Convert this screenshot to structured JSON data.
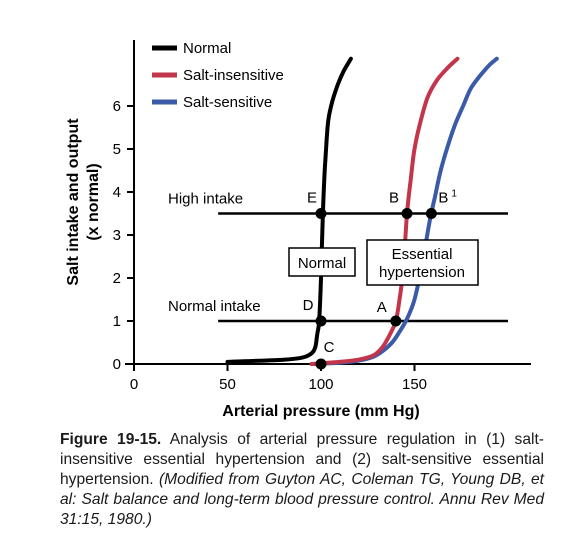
{
  "chart_data": {
    "type": "line",
    "xlabel": "Arterial pressure (mm Hg)",
    "ylabel_line1": "Salt intake and output",
    "ylabel_line2": "(x normal)",
    "xlim": [
      0,
      200
    ],
    "ylim": [
      0,
      7.3
    ],
    "x_ticks": [
      0,
      50,
      100,
      150
    ],
    "y_ticks": [
      0,
      1,
      2,
      3,
      4,
      5,
      6
    ],
    "grid": false,
    "legend_position": "top-left",
    "series": [
      {
        "name": "Normal",
        "color": "#000000",
        "x": [
          50,
          80,
          90,
          95,
          97,
          98,
          99,
          100,
          101,
          102,
          103,
          104,
          106,
          109,
          112,
          116
        ],
        "y": [
          0.05,
          0.1,
          0.15,
          0.25,
          0.4,
          0.7,
          1.0,
          2.0,
          3.5,
          4.5,
          5.2,
          5.7,
          6.1,
          6.5,
          6.8,
          7.1
        ]
      },
      {
        "name": "Salt-insensitive",
        "color": "#c3354a",
        "x": [
          95,
          110,
          120,
          128,
          133,
          137,
          140,
          142,
          144,
          146,
          148,
          150,
          153,
          157,
          162,
          168,
          173
        ],
        "y": [
          0.0,
          0.05,
          0.1,
          0.2,
          0.4,
          0.7,
          1.0,
          1.5,
          2.2,
          3.5,
          4.3,
          5.0,
          5.6,
          6.2,
          6.6,
          6.9,
          7.1
        ]
      },
      {
        "name": "Salt-sensitive",
        "color": "#3b5aa7",
        "x": [
          95,
          110,
          120,
          128,
          133,
          138,
          142,
          146,
          150,
          154,
          158,
          161,
          164,
          168,
          172,
          176,
          180,
          185,
          190,
          194
        ],
        "y": [
          0.0,
          0.03,
          0.08,
          0.17,
          0.3,
          0.5,
          0.75,
          1.05,
          1.5,
          2.3,
          3.3,
          3.9,
          4.5,
          5.1,
          5.6,
          6.0,
          6.4,
          6.7,
          6.95,
          7.1
        ]
      }
    ],
    "reference_lines": [
      {
        "label": "High intake",
        "y": 3.5,
        "x_start": 45,
        "x_end": 200
      },
      {
        "label": "Normal intake",
        "y": 1.0,
        "x_start": 45,
        "x_end": 200
      }
    ],
    "points": [
      {
        "label": "E",
        "x": 100,
        "y": 3.5
      },
      {
        "label": "B",
        "x": 146,
        "y": 3.5
      },
      {
        "label": "B",
        "superscript": "1",
        "x": 159,
        "y": 3.5
      },
      {
        "label": "D",
        "x": 100,
        "y": 1.0
      },
      {
        "label": "A",
        "x": 140,
        "y": 1.0
      },
      {
        "label": "C",
        "x": 100,
        "y": 0.0
      }
    ],
    "boxed_labels": [
      {
        "lines": [
          "Normal"
        ]
      },
      {
        "lines": [
          "Essential",
          "hypertension"
        ]
      }
    ]
  },
  "caption": {
    "figure_number": "Figure 19-15.",
    "text": " Analysis of arterial pressure regulation in (1) salt-insensitive essential hypertension and (2) salt-sensitive essential hypertension. ",
    "source": "(Modified from Guyton AC, Coleman TG, Young DB, et al: Salt balance and long-term blood pressure control. Annu Rev Med 31:15, 1980.)"
  }
}
